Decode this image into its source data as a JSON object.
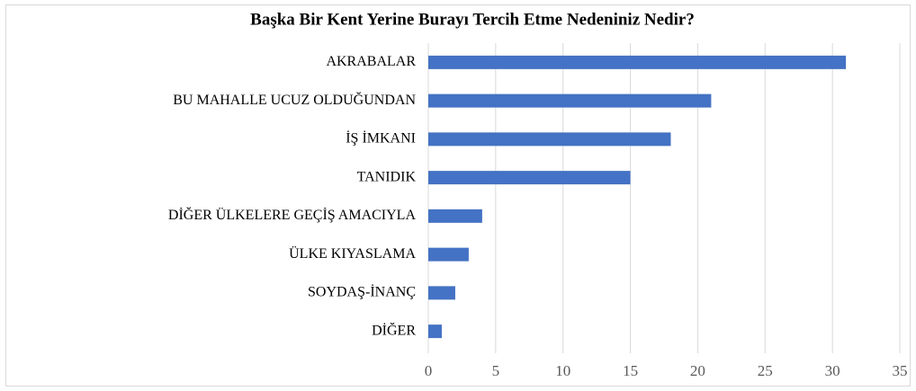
{
  "chart_data": {
    "type": "hbar",
    "title": "Başka Bir Kent Yerine Burayı Tercih Etme Nedeniniz Nedir?",
    "categories": [
      "AKRABALAR",
      "BU MAHALLE UCUZ OLDUĞUNDAN",
      "İŞ İMKANI",
      "TANIDIK",
      "DİĞER ÜLKELERE GEÇİŞ AMACIYLA",
      "ÜLKE KIYASLAMA",
      "SOYDAŞ-İNANÇ",
      "DİĞER"
    ],
    "values": [
      31,
      21,
      18,
      15,
      4,
      3,
      2,
      1
    ],
    "color": "#4472c4",
    "xlim": [
      0,
      35
    ],
    "xticks": [
      0,
      5,
      10,
      15,
      20,
      25,
      30,
      35
    ],
    "grid": true
  }
}
